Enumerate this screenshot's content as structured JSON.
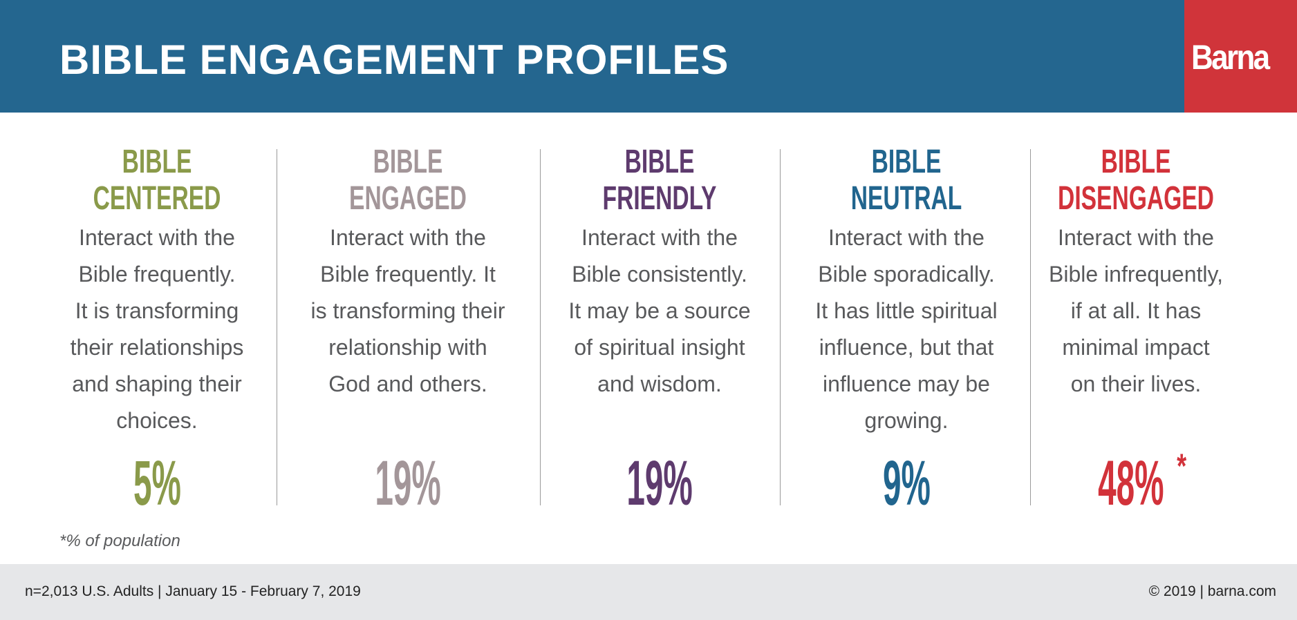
{
  "header": {
    "title": "BIBLE ENGAGEMENT PROFILES",
    "logo": "Barna"
  },
  "colors": {
    "header_bg": "#24668f",
    "logo_bg": "#d0343a"
  },
  "profiles": [
    {
      "line1": "BIBLE",
      "line2": "CENTERED",
      "color": "#8a9a4a",
      "desc": [
        "Interact with the",
        "Bible frequently.",
        "It is transforming",
        "their relationships",
        "and shaping their",
        "choices."
      ],
      "percent": "5%",
      "mark": ""
    },
    {
      "line1": "BIBLE",
      "line2": "ENGAGED",
      "color": "#a39699",
      "desc": [
        "Interact with the",
        "Bible frequently. It",
        "is transforming their",
        "relationship with",
        "God and others."
      ],
      "percent": "19%",
      "mark": ""
    },
    {
      "line1": "BIBLE",
      "line2": "FRIENDLY",
      "color": "#5e3b6e",
      "desc": [
        "Interact with the",
        "Bible consistently.",
        "It may be a source",
        "of spiritual insight",
        "and wisdom."
      ],
      "percent": "19%",
      "mark": ""
    },
    {
      "line1": "BIBLE",
      "line2": "NEUTRAL",
      "color": "#21658e",
      "desc": [
        "Interact with the",
        "Bible sporadically.",
        "It has little spiritual",
        "influence, but that",
        "influence may be",
        "growing."
      ],
      "percent": "9%",
      "mark": ""
    },
    {
      "line1": "BIBLE",
      "line2": "DISENGAGED",
      "color": "#d2323a",
      "desc": [
        "Interact with the",
        "Bible infrequently,",
        "if at all. It has",
        "minimal impact",
        "on their lives."
      ],
      "percent": "48%",
      "mark": "*"
    }
  ],
  "footnote": "*% of population",
  "footer": {
    "left": "n=2,013 U.S. Adults | January 15 - February 7, 2019",
    "right": "© 2019 | barna.com"
  }
}
